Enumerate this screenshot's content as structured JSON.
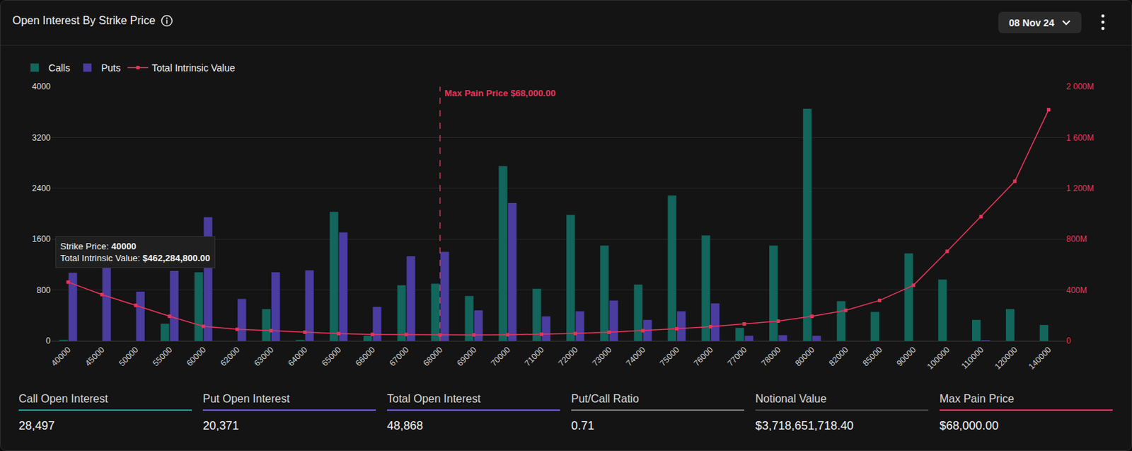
{
  "header": {
    "title": "Open Interest By Strike Price",
    "date": "08 Nov 24"
  },
  "chart_data": {
    "type": "bar",
    "categories": [
      "40000",
      "45000",
      "50000",
      "55000",
      "60000",
      "62000",
      "63000",
      "64000",
      "65000",
      "66000",
      "67000",
      "68000",
      "69000",
      "70000",
      "71000",
      "72000",
      "73000",
      "74000",
      "75000",
      "76000",
      "77000",
      "78000",
      "80000",
      "82000",
      "85000",
      "90000",
      "100000",
      "110000",
      "120000",
      "140000"
    ],
    "series": [
      {
        "name": "Calls",
        "color": "#12665b",
        "values": [
          15,
          0,
          0,
          270,
          1080,
          0,
          500,
          15,
          2030,
          80,
          875,
          900,
          705,
          2750,
          820,
          1980,
          1500,
          885,
          2285,
          1660,
          205,
          1500,
          3650,
          625,
          455,
          1375,
          965,
          330,
          500,
          250
        ]
      },
      {
        "name": "Puts",
        "color": "#4b3ca0",
        "values": [
          1070,
          1260,
          775,
          1100,
          1945,
          660,
          1080,
          1110,
          1705,
          535,
          1330,
          1400,
          480,
          2170,
          385,
          465,
          635,
          330,
          465,
          590,
          80,
          90,
          80,
          0,
          0,
          0,
          0,
          10,
          0,
          0
        ]
      },
      {
        "name": "Total Intrinsic Value",
        "type": "line",
        "marker": "square",
        "line_style": "solid",
        "axis": "y2",
        "color": "#e8345a",
        "values": [
          462.2848,
          364,
          279,
          193,
          114,
          91,
          80,
          68,
          57,
          51,
          50,
          46,
          47,
          48,
          52,
          58,
          68,
          80,
          95,
          112,
          133,
          155,
          193,
          240,
          318,
          437,
          704,
          977,
          1255,
          1818
        ]
      }
    ],
    "ylim": [
      0,
      4000
    ],
    "yticks": [
      0,
      800,
      1600,
      2400,
      3200,
      4000
    ],
    "y2lim": [
      0,
      2000
    ],
    "y2ticks": [
      0,
      {
        "value": 400,
        "label": "400M"
      },
      {
        "value": 800,
        "label": "800M"
      },
      {
        "value": 1200,
        "label": "1 200M"
      },
      {
        "value": 1600,
        "label": "1 600M"
      },
      {
        "value": 2000,
        "label": "2 000M"
      }
    ],
    "grid": true,
    "legend": "top left",
    "annotations": [
      {
        "text": "Max Pain Price $68,000.00",
        "x": "68000",
        "color": "#e8345a"
      }
    ],
    "tooltip": {
      "x": "40000",
      "lines": [
        {
          "label": "Strike Price:",
          "value": "40000"
        },
        {
          "label": "Total Intrinsic Value:",
          "value": "$462,284,800.00"
        }
      ]
    }
  },
  "stats": [
    {
      "label": "Call Open Interest",
      "value": "28,497",
      "color": "#14a394"
    },
    {
      "label": "Put Open Interest",
      "value": "20,371",
      "color": "#6e56e6"
    },
    {
      "label": "Total Open Interest",
      "value": "48,868",
      "color": "#6e56e6"
    },
    {
      "label": "Put/Call Ratio",
      "value": "0.71",
      "color": "#7a7a7a"
    },
    {
      "label": "Notional Value",
      "value": "$3,718,651,718.40",
      "color": "#444444"
    },
    {
      "label": "Max Pain Price",
      "value": "$68,000.00",
      "color": "#e8345a"
    }
  ]
}
